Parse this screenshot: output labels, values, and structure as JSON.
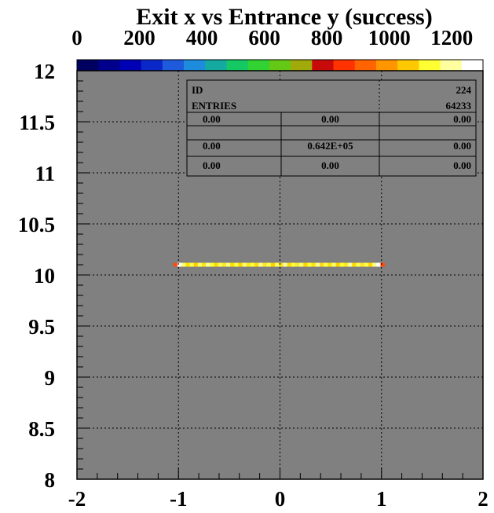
{
  "chart_data": {
    "type": "heatmap",
    "title": "Exit x vs Entrance y (success)",
    "xlabel": "",
    "ylabel": "",
    "xlim": [
      -2,
      2
    ],
    "ylim": [
      8,
      12
    ],
    "x_ticks": [
      "-2",
      "-1",
      "0",
      "1",
      "2"
    ],
    "y_ticks": [
      "8",
      "8.5",
      "9",
      "9.5",
      "10",
      "10.5",
      "11",
      "11.5",
      "12"
    ],
    "grid": true,
    "colorbar": {
      "range": [
        0,
        1300
      ],
      "tick_labels": [
        "0",
        "200",
        "400",
        "600",
        "800",
        "1000",
        "1200"
      ],
      "colors": [
        "#000060",
        "#00008c",
        "#0000b4",
        "#0a28c8",
        "#1e5adc",
        "#1e8cdc",
        "#14aaa0",
        "#14c864",
        "#32d232",
        "#64c814",
        "#a0aa0a",
        "#c80a0a",
        "#ff3200",
        "#ff6400",
        "#ff9600",
        "#ffc800",
        "#ffff32",
        "#ffffa0",
        "#ffffff"
      ]
    },
    "band": {
      "y": 10.1,
      "x_range": [
        -1.0,
        1.0
      ],
      "cells": [
        {
          "x": -1.03,
          "color": "#ff4a0a"
        },
        {
          "x": -0.99,
          "color": "#ffffff"
        },
        {
          "x": -0.95,
          "color": "#ffff6e"
        },
        {
          "x": -0.91,
          "color": "#ffe600"
        },
        {
          "x": -0.87,
          "color": "#ffff46"
        },
        {
          "x": -0.83,
          "color": "#ffd200"
        },
        {
          "x": -0.79,
          "color": "#ffff64"
        },
        {
          "x": -0.75,
          "color": "#ffe614"
        },
        {
          "x": -0.71,
          "color": "#ffffa0"
        },
        {
          "x": -0.67,
          "color": "#ffff32"
        },
        {
          "x": -0.63,
          "color": "#ffdc00"
        },
        {
          "x": -0.59,
          "color": "#ffff5a"
        },
        {
          "x": -0.55,
          "color": "#ffeb28"
        },
        {
          "x": -0.51,
          "color": "#ffff82"
        },
        {
          "x": -0.47,
          "color": "#ffe100"
        },
        {
          "x": -0.43,
          "color": "#ffff46"
        },
        {
          "x": -0.39,
          "color": "#ffd700"
        },
        {
          "x": -0.35,
          "color": "#ffff6e"
        },
        {
          "x": -0.31,
          "color": "#ffeb1e"
        },
        {
          "x": -0.27,
          "color": "#ffff3c"
        },
        {
          "x": -0.23,
          "color": "#ffdc0a"
        },
        {
          "x": -0.19,
          "color": "#ffff8c"
        },
        {
          "x": -0.15,
          "color": "#ffe628"
        },
        {
          "x": -0.11,
          "color": "#ffff50"
        },
        {
          "x": -0.07,
          "color": "#ffd200"
        },
        {
          "x": -0.03,
          "color": "#ffff64"
        },
        {
          "x": 0.01,
          "color": "#ffe114"
        },
        {
          "x": 0.05,
          "color": "#ffffaa"
        },
        {
          "x": 0.09,
          "color": "#ffdc00"
        },
        {
          "x": 0.13,
          "color": "#ffff46"
        },
        {
          "x": 0.17,
          "color": "#ffeb28"
        },
        {
          "x": 0.21,
          "color": "#ffff78"
        },
        {
          "x": 0.25,
          "color": "#ffd700"
        },
        {
          "x": 0.29,
          "color": "#ffff3c"
        },
        {
          "x": 0.33,
          "color": "#ffe60a"
        },
        {
          "x": 0.37,
          "color": "#ffff96"
        },
        {
          "x": 0.41,
          "color": "#ffdc14"
        },
        {
          "x": 0.45,
          "color": "#ffff50"
        },
        {
          "x": 0.49,
          "color": "#ffe100"
        },
        {
          "x": 0.53,
          "color": "#ffff6e"
        },
        {
          "x": 0.57,
          "color": "#ffd200"
        },
        {
          "x": 0.61,
          "color": "#ffff32"
        },
        {
          "x": 0.65,
          "color": "#ffeb1e"
        },
        {
          "x": 0.69,
          "color": "#ffffa0"
        },
        {
          "x": 0.73,
          "color": "#ffdc00"
        },
        {
          "x": 0.77,
          "color": "#ffff5a"
        },
        {
          "x": 0.81,
          "color": "#ffe628"
        },
        {
          "x": 0.85,
          "color": "#ffff46"
        },
        {
          "x": 0.89,
          "color": "#ffd700"
        },
        {
          "x": 0.93,
          "color": "#ffff82"
        },
        {
          "x": 0.97,
          "color": "#ffffff"
        },
        {
          "x": 1.01,
          "color": "#ff4a0a"
        }
      ]
    },
    "stats": {
      "id_label": "ID",
      "id_value": "224",
      "entries_label": "ENTRIES",
      "entries_value": "64233",
      "grid": [
        [
          "0.00",
          "0.00",
          "0.00"
        ],
        [
          "0.00",
          "0.642E+05",
          "0.00"
        ],
        [
          "0.00",
          "0.00",
          "0.00"
        ]
      ]
    },
    "colors": {
      "frame_fill": "#808080",
      "axis": "#000000",
      "grid": "#000000"
    }
  }
}
